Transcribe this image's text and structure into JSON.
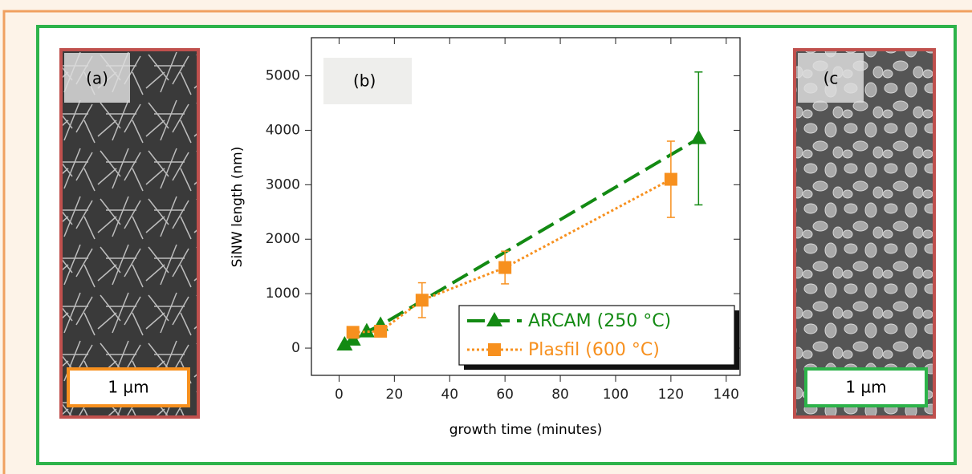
{
  "chart_data": {
    "type": "line",
    "panel_label": "(b)",
    "x_label": "growth time (minutes)",
    "y_label": "SiNW length (nm)",
    "xlim": [
      -10,
      145
    ],
    "xticks": [
      0,
      20,
      40,
      60,
      80,
      100,
      120,
      140
    ],
    "ylim": [
      -500,
      5700
    ],
    "yticks": [
      0,
      1000,
      2000,
      3000,
      4000,
      5000
    ],
    "legend": "lower right",
    "series": [
      {
        "name": "ARCAM (250 °C)",
        "color": "#138a13",
        "line_style": "dashed",
        "marker": "triangle",
        "x": [
          2,
          5,
          10,
          15,
          130
        ],
        "values": [
          60,
          150,
          300,
          420,
          3850
        ],
        "errors": [
          null,
          null,
          null,
          null,
          1220
        ]
      },
      {
        "name": "Plasfil (600 °C)",
        "color": "#f7901e",
        "line_style": "dotted",
        "marker": "square",
        "x": [
          5,
          15,
          30,
          60,
          120
        ],
        "values": [
          290,
          310,
          880,
          1480,
          3100
        ],
        "errors": [
          50,
          50,
          320,
          300,
          700
        ]
      }
    ]
  },
  "panels": {
    "left": {
      "label": "(a)",
      "scale": "1 µm"
    },
    "right": {
      "label": "(c",
      "scale": "1 µm"
    }
  }
}
